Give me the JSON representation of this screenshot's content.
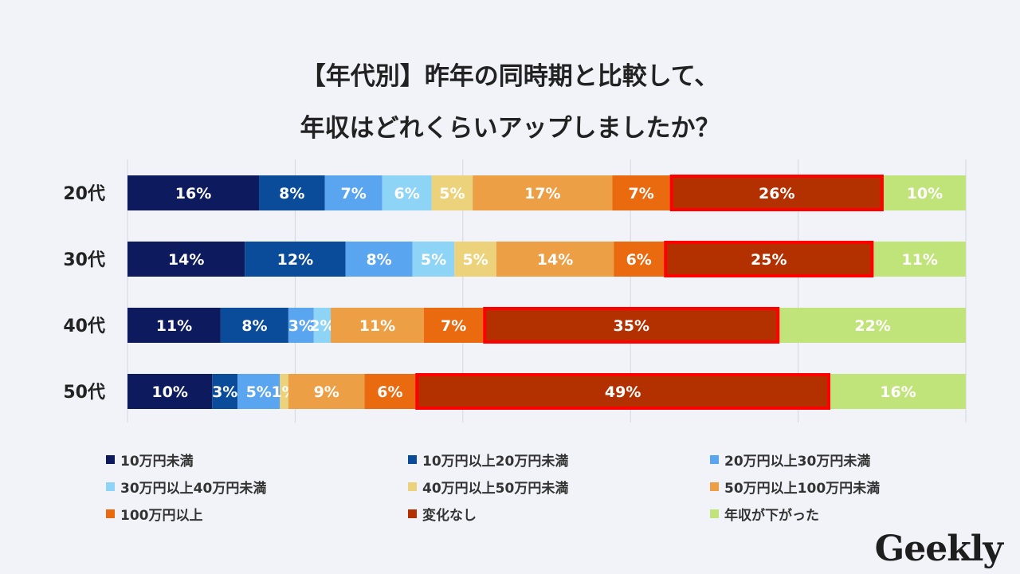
{
  "title": {
    "line1": "【年代別】昨年の同時期と比較して、",
    "line2": "年収はどれくらいアップしましたか？"
  },
  "brand": "Geekly",
  "chart_data": {
    "type": "bar",
    "orientation": "horizontal-stacked-100",
    "categories": [
      "20代",
      "30代",
      "40代",
      "50代"
    ],
    "series": [
      {
        "name": "10万円未満",
        "color": "#0d1b5e",
        "values": [
          16,
          14,
          11,
          10
        ]
      },
      {
        "name": "10万円以上20万円未満",
        "color": "#0a4c9a",
        "values": [
          8,
          12,
          8,
          3
        ]
      },
      {
        "name": "20万円以上30万円未満",
        "color": "#5aa5f0",
        "values": [
          7,
          8,
          3,
          5
        ]
      },
      {
        "name": "30万円以上40万円未満",
        "color": "#8ed4f7",
        "values": [
          6,
          5,
          2,
          0
        ]
      },
      {
        "name": "40万円以上50万円未満",
        "color": "#ecd27a",
        "values": [
          5,
          5,
          0,
          1
        ]
      },
      {
        "name": "50万円以上100万円未満",
        "color": "#ec9f45",
        "values": [
          17,
          14,
          11,
          9
        ]
      },
      {
        "name": "100万円以上",
        "color": "#ea6a10",
        "values": [
          7,
          6,
          7,
          6
        ]
      },
      {
        "name": "変化なし",
        "color": "#b33000",
        "values": [
          26,
          25,
          35,
          49
        ]
      },
      {
        "name": "年収が下がった",
        "color": "#c1e47a",
        "values": [
          10,
          11,
          22,
          16
        ]
      }
    ],
    "labels": [
      [
        "16%",
        "8%",
        "7%",
        "6%",
        "5%",
        "17%",
        "7%",
        "26%",
        "10%"
      ],
      [
        "14%",
        "12%",
        "8%",
        "5%",
        "5%",
        "14%",
        "6%",
        "25%",
        "11%"
      ],
      [
        "11%",
        "8%",
        "3%",
        "2%",
        "",
        "11%",
        "7%",
        "35%",
        "22%"
      ],
      [
        "10%",
        "3%",
        "5%",
        "",
        "1%",
        "9%",
        "6%",
        "49%",
        "16%"
      ]
    ],
    "highlight_series": "変化なし",
    "highlight_color": "#ff0000",
    "xlim": [
      0,
      100
    ],
    "grid": true,
    "legend_position": "bottom"
  }
}
